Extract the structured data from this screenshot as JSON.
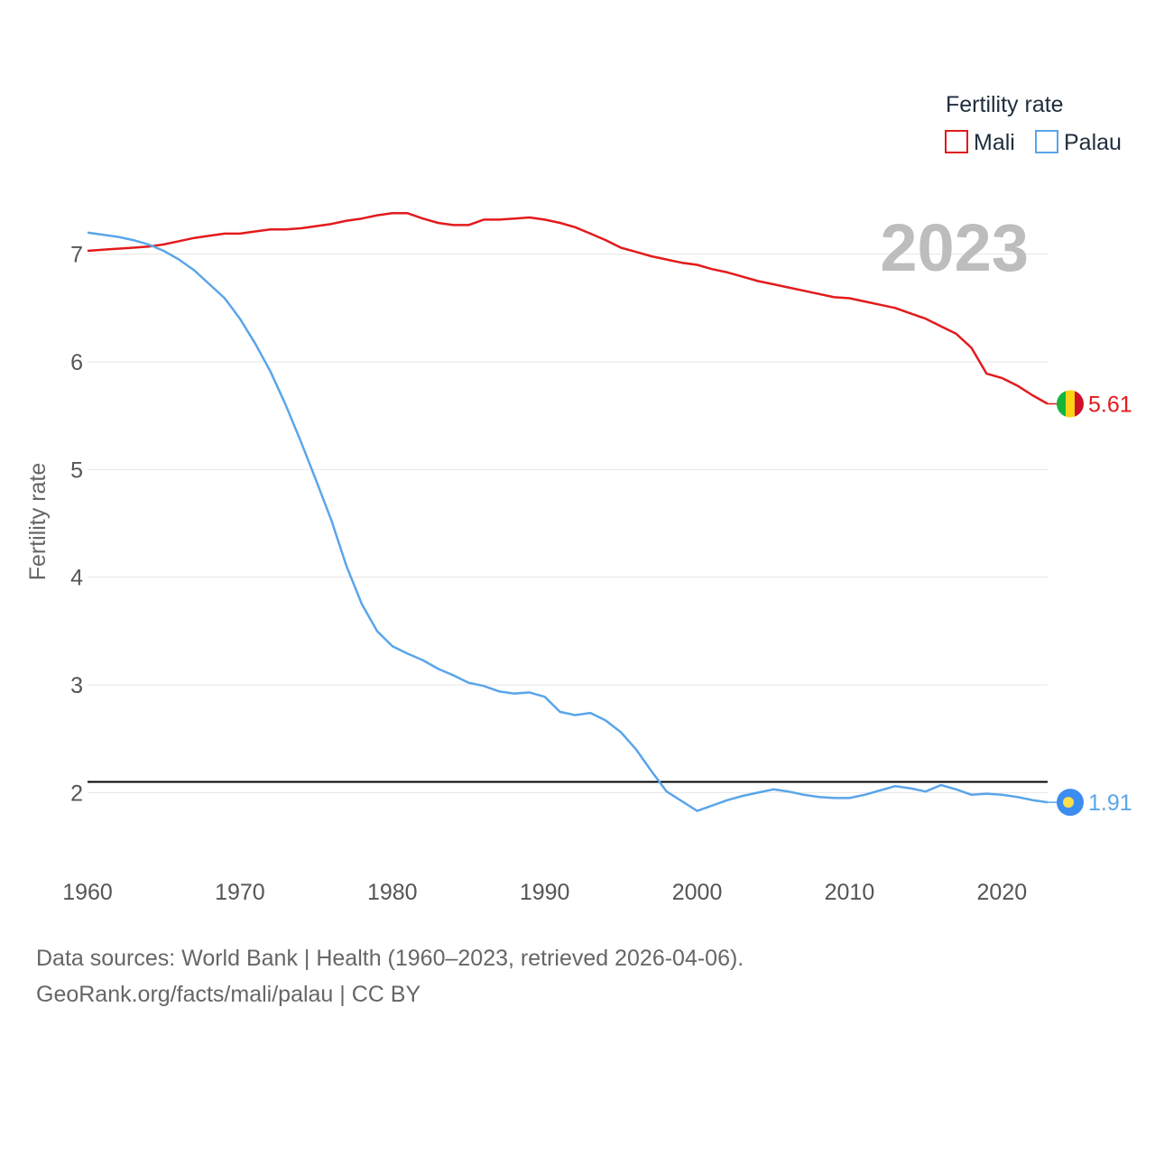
{
  "chart_data": {
    "type": "line",
    "year_label": "2023",
    "legend": {
      "title": "Fertility rate",
      "items": [
        {
          "name": "Mali",
          "color": "#e31a1c"
        },
        {
          "name": "Palau",
          "color": "#5aa5ea"
        }
      ]
    },
    "ylabel": "Fertility rate",
    "xlabel": "",
    "xlim": [
      1960,
      2023
    ],
    "ylim": [
      1.4,
      7.6
    ],
    "x_ticks": [
      "1960",
      "1970",
      "1980",
      "1990",
      "2000",
      "2010",
      "2020"
    ],
    "y_ticks": [
      "2",
      "3",
      "4",
      "5",
      "6",
      "7"
    ],
    "reference_line": 2.1,
    "x": [
      1960,
      1961,
      1962,
      1963,
      1964,
      1965,
      1966,
      1967,
      1968,
      1969,
      1970,
      1971,
      1972,
      1973,
      1974,
      1975,
      1976,
      1977,
      1978,
      1979,
      1980,
      1981,
      1982,
      1983,
      1984,
      1985,
      1986,
      1987,
      1988,
      1989,
      1990,
      1991,
      1992,
      1993,
      1994,
      1995,
      1996,
      1997,
      1998,
      1999,
      2000,
      2001,
      2002,
      2003,
      2004,
      2005,
      2006,
      2007,
      2008,
      2009,
      2010,
      2011,
      2012,
      2013,
      2014,
      2015,
      2016,
      2017,
      2018,
      2019,
      2020,
      2021,
      2022,
      2023
    ],
    "series": [
      {
        "name": "Mali",
        "color": "#e31a1c",
        "end_label": "5.61",
        "values": [
          7.03,
          7.04,
          7.05,
          7.06,
          7.07,
          7.09,
          7.12,
          7.15,
          7.17,
          7.19,
          7.19,
          7.21,
          7.23,
          7.23,
          7.24,
          7.26,
          7.28,
          7.31,
          7.33,
          7.36,
          7.38,
          7.38,
          7.33,
          7.29,
          7.27,
          7.27,
          7.32,
          7.32,
          7.33,
          7.34,
          7.32,
          7.29,
          7.25,
          7.19,
          7.13,
          7.06,
          7.02,
          6.98,
          6.95,
          6.92,
          6.9,
          6.86,
          6.83,
          6.79,
          6.75,
          6.72,
          6.69,
          6.66,
          6.63,
          6.6,
          6.59,
          6.56,
          6.53,
          6.5,
          6.45,
          6.4,
          6.33,
          6.26,
          6.13,
          5.89,
          5.85,
          5.78,
          5.69,
          5.61
        ]
      },
      {
        "name": "Palau",
        "color": "#5aa5ea",
        "end_label": "1.91",
        "values": [
          7.2,
          7.18,
          7.16,
          7.13,
          7.09,
          7.03,
          6.95,
          6.85,
          6.72,
          6.59,
          6.4,
          6.17,
          5.91,
          5.6,
          5.26,
          4.9,
          4.53,
          4.1,
          3.75,
          3.5,
          3.36,
          3.29,
          3.23,
          3.15,
          3.09,
          3.02,
          2.99,
          2.94,
          2.92,
          2.93,
          2.89,
          2.75,
          2.72,
          2.74,
          2.67,
          2.56,
          2.4,
          2.2,
          2.01,
          1.92,
          1.83,
          1.88,
          1.93,
          1.97,
          2.0,
          2.03,
          2.01,
          1.98,
          1.96,
          1.95,
          1.95,
          1.98,
          2.02,
          2.06,
          2.04,
          2.01,
          2.07,
          2.03,
          1.98,
          1.99,
          1.98,
          1.96,
          1.93,
          1.91
        ]
      }
    ]
  },
  "footer": {
    "sources": "Data sources: World Bank | Health (1960–2023, retrieved 2026-04-06).",
    "credit": "GeoRank.org/facts/mali/palau | CC BY"
  }
}
